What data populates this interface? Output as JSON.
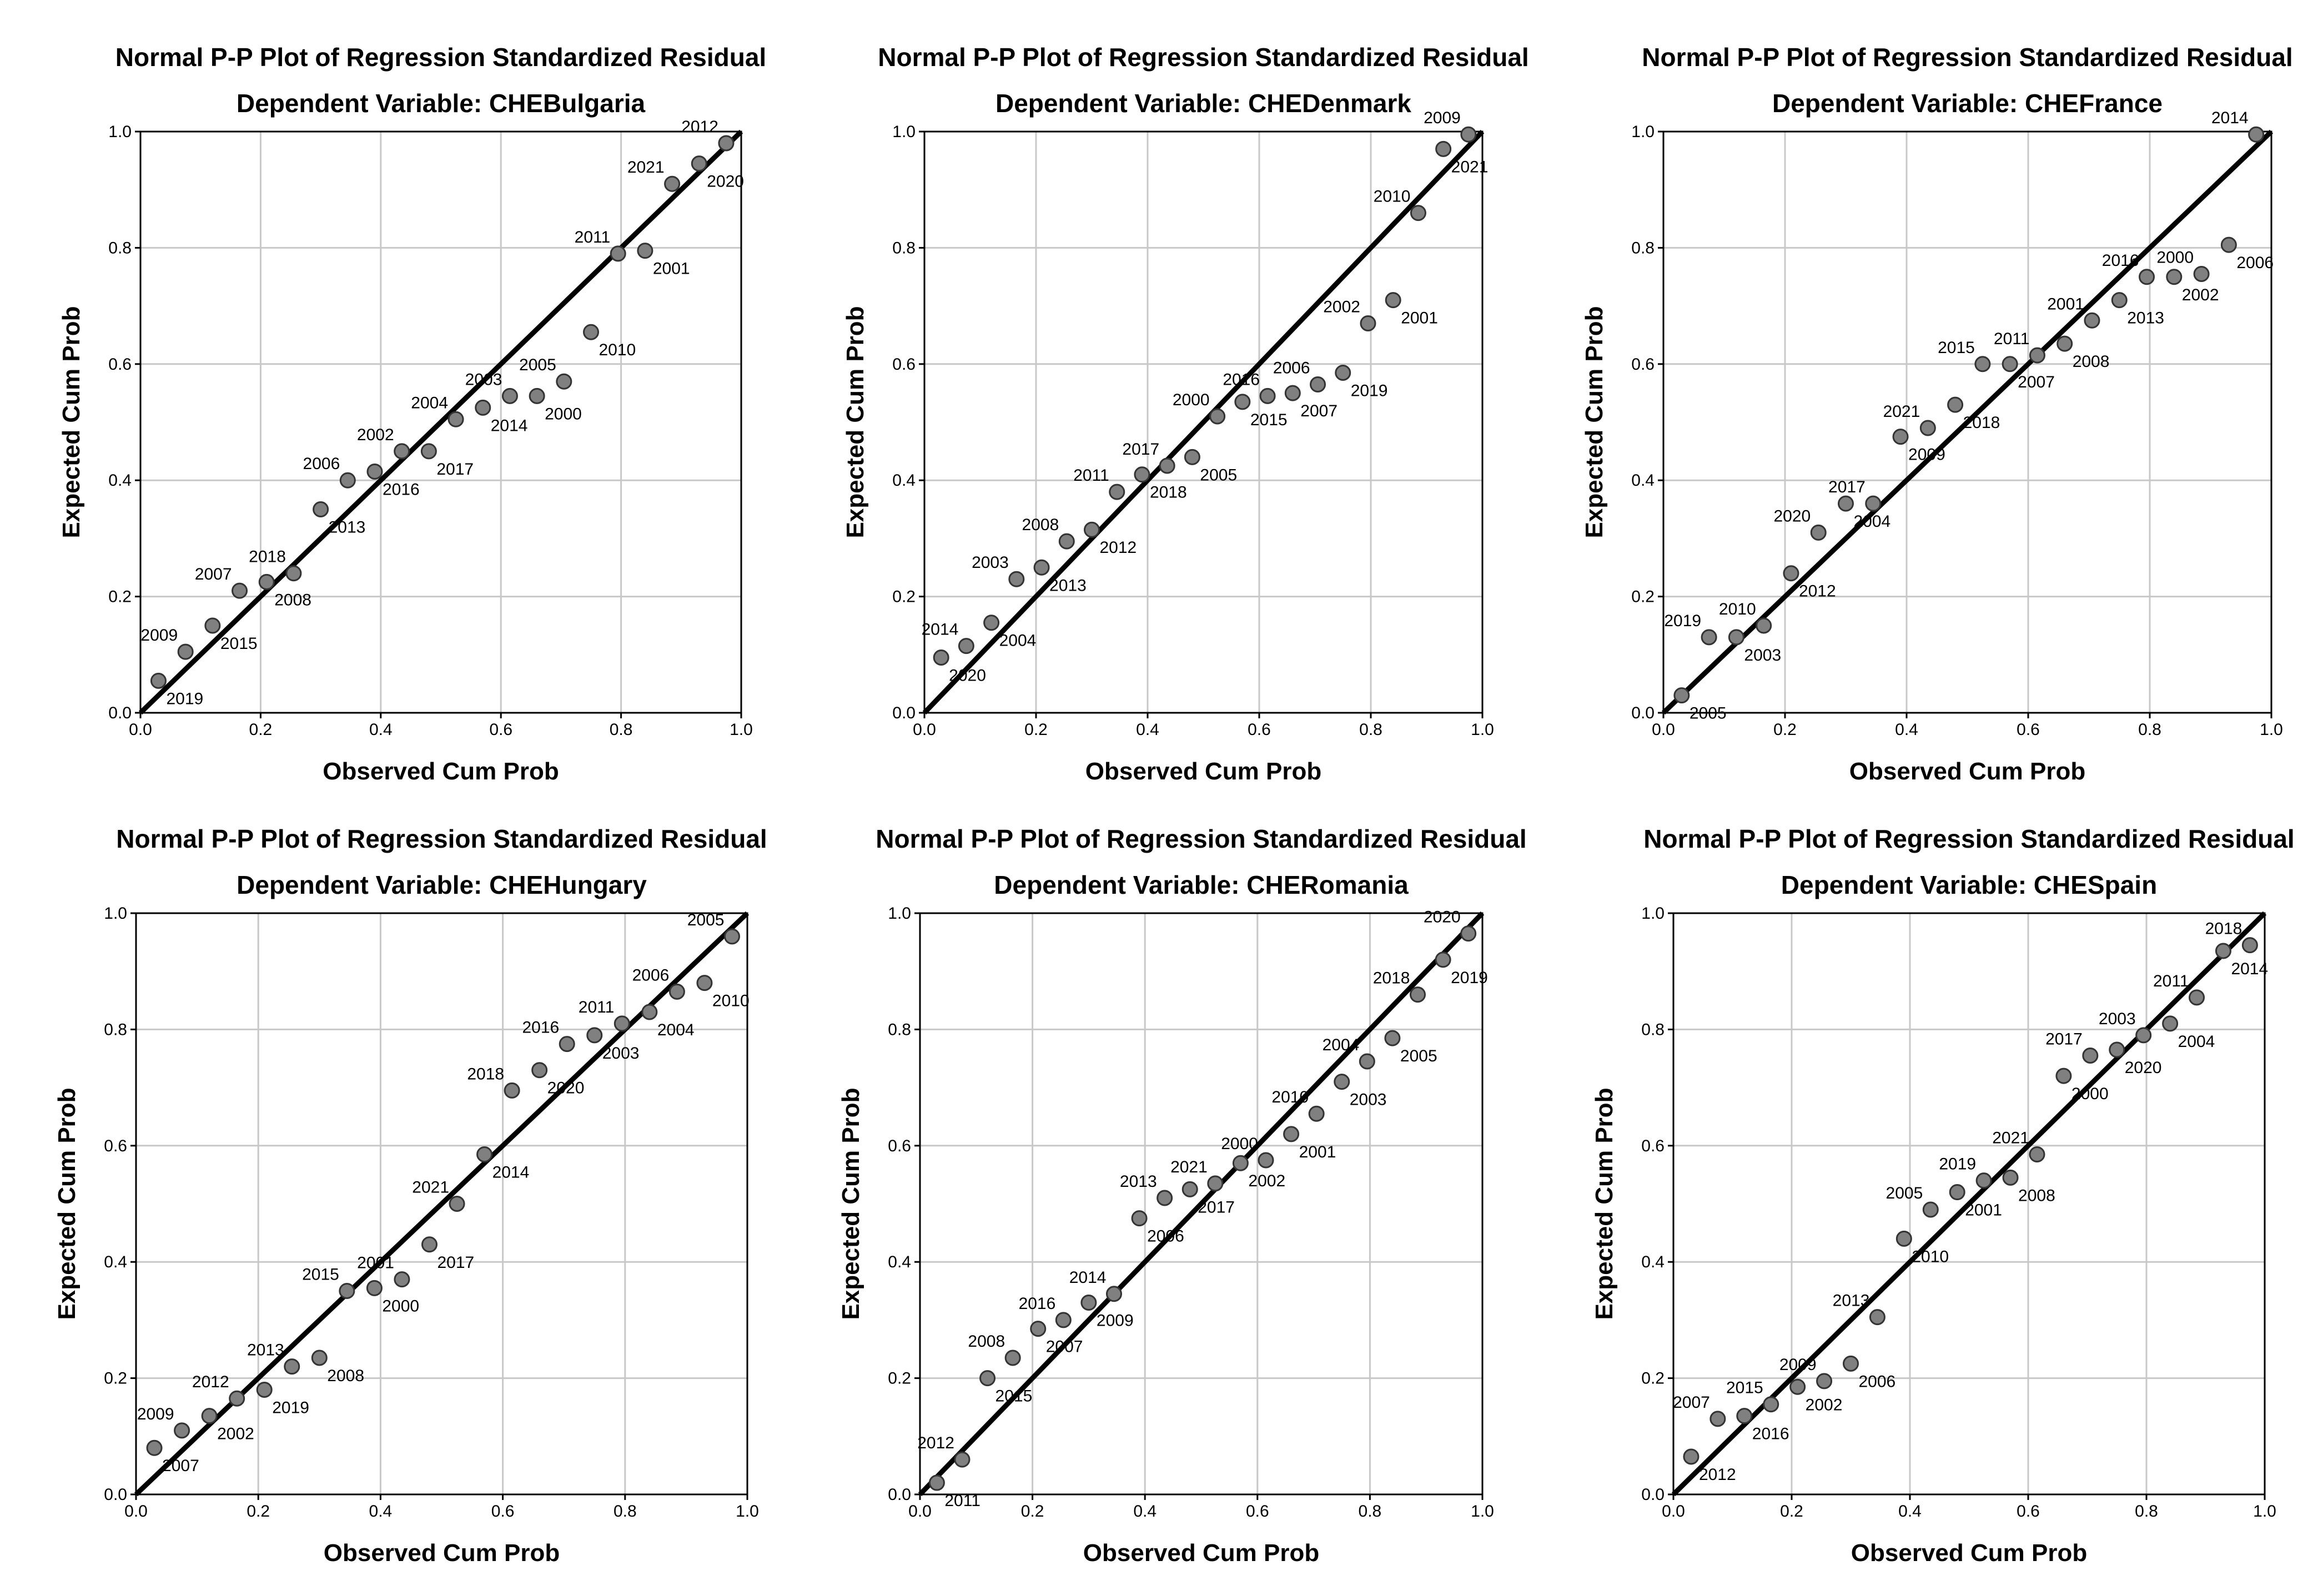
{
  "chart_data": [
    {
      "type": "scatter",
      "title": "Normal P-P Plot of Regression Standardized Residual",
      "subtitle": "Dependent Variable: CHEBulgaria",
      "xlabel": "Observed Cum Prob",
      "ylabel": "Expected Cum Prob",
      "xlim": [
        0,
        1
      ],
      "ylim": [
        0,
        1
      ],
      "ticks": [
        "0.0",
        "0.2",
        "0.4",
        "0.6",
        "0.8",
        "1.0"
      ],
      "grid": true,
      "reference_line": [
        [
          0,
          0
        ],
        [
          1,
          1
        ]
      ],
      "points": [
        {
          "label": "2019",
          "x": 0.03,
          "y": 0.055
        },
        {
          "label": "2009",
          "x": 0.075,
          "y": 0.105
        },
        {
          "label": "2015",
          "x": 0.12,
          "y": 0.15
        },
        {
          "label": "2007",
          "x": 0.165,
          "y": 0.21
        },
        {
          "label": "2008",
          "x": 0.21,
          "y": 0.225
        },
        {
          "label": "2018",
          "x": 0.255,
          "y": 0.24
        },
        {
          "label": "2013",
          "x": 0.3,
          "y": 0.35
        },
        {
          "label": "2006",
          "x": 0.345,
          "y": 0.4
        },
        {
          "label": "2016",
          "x": 0.39,
          "y": 0.415
        },
        {
          "label": "2002",
          "x": 0.435,
          "y": 0.45
        },
        {
          "label": "2017",
          "x": 0.48,
          "y": 0.45
        },
        {
          "label": "2004",
          "x": 0.525,
          "y": 0.505
        },
        {
          "label": "2014",
          "x": 0.57,
          "y": 0.525
        },
        {
          "label": "2003",
          "x": 0.615,
          "y": 0.545
        },
        {
          "label": "2000",
          "x": 0.66,
          "y": 0.545
        },
        {
          "label": "2005",
          "x": 0.705,
          "y": 0.57
        },
        {
          "label": "2010",
          "x": 0.75,
          "y": 0.655
        },
        {
          "label": "2011",
          "x": 0.795,
          "y": 0.79
        },
        {
          "label": "2001",
          "x": 0.84,
          "y": 0.795
        },
        {
          "label": "2021",
          "x": 0.885,
          "y": 0.91
        },
        {
          "label": "2020",
          "x": 0.93,
          "y": 0.945
        },
        {
          "label": "2012",
          "x": 0.975,
          "y": 0.98
        }
      ]
    },
    {
      "type": "scatter",
      "title": "Normal P-P Plot of Regression Standardized Residual",
      "subtitle": "Dependent Variable: CHEDenmark",
      "xlabel": "Observed Cum Prob",
      "ylabel": "Expected Cum Prob",
      "xlim": [
        0,
        1
      ],
      "ylim": [
        0,
        1
      ],
      "ticks": [
        "0.0",
        "0.2",
        "0.4",
        "0.6",
        "0.8",
        "1.0"
      ],
      "grid": true,
      "reference_line": [
        [
          0,
          0
        ],
        [
          1,
          1
        ]
      ],
      "points": [
        {
          "label": "2020",
          "x": 0.03,
          "y": 0.095
        },
        {
          "label": "2014",
          "x": 0.075,
          "y": 0.115
        },
        {
          "label": "2004",
          "x": 0.12,
          "y": 0.155
        },
        {
          "label": "2003",
          "x": 0.165,
          "y": 0.23
        },
        {
          "label": "2013",
          "x": 0.21,
          "y": 0.25
        },
        {
          "label": "2008",
          "x": 0.255,
          "y": 0.295
        },
        {
          "label": "2012",
          "x": 0.3,
          "y": 0.315
        },
        {
          "label": "2011",
          "x": 0.345,
          "y": 0.38
        },
        {
          "label": "2018",
          "x": 0.39,
          "y": 0.41
        },
        {
          "label": "2017",
          "x": 0.435,
          "y": 0.425
        },
        {
          "label": "2005",
          "x": 0.48,
          "y": 0.44
        },
        {
          "label": "2000",
          "x": 0.525,
          "y": 0.51
        },
        {
          "label": "2015",
          "x": 0.57,
          "y": 0.535
        },
        {
          "label": "2016",
          "x": 0.615,
          "y": 0.545
        },
        {
          "label": "2007",
          "x": 0.66,
          "y": 0.55
        },
        {
          "label": "2006",
          "x": 0.705,
          "y": 0.565
        },
        {
          "label": "2019",
          "x": 0.75,
          "y": 0.585
        },
        {
          "label": "2002",
          "x": 0.795,
          "y": 0.67
        },
        {
          "label": "2001",
          "x": 0.84,
          "y": 0.71
        },
        {
          "label": "2010",
          "x": 0.885,
          "y": 0.86
        },
        {
          "label": "2021",
          "x": 0.93,
          "y": 0.97
        },
        {
          "label": "2009",
          "x": 0.975,
          "y": 0.995
        }
      ]
    },
    {
      "type": "scatter",
      "title": "Normal P-P Plot of Regression Standardized Residual",
      "subtitle": "Dependent Variable: CHEFrance",
      "xlabel": "Observed Cum Prob",
      "ylabel": "Expected Cum Prob",
      "xlim": [
        0,
        1
      ],
      "ylim": [
        0,
        1
      ],
      "ticks": [
        "0.0",
        "0.2",
        "0.4",
        "0.6",
        "0.8",
        "1.0"
      ],
      "grid": true,
      "reference_line": [
        [
          0,
          0
        ],
        [
          1,
          1
        ]
      ],
      "points": [
        {
          "label": "2005",
          "x": 0.03,
          "y": 0.03
        },
        {
          "label": "2019",
          "x": 0.075,
          "y": 0.13
        },
        {
          "label": "2003",
          "x": 0.12,
          "y": 0.13
        },
        {
          "label": "2010",
          "x": 0.165,
          "y": 0.15
        },
        {
          "label": "2012",
          "x": 0.21,
          "y": 0.24
        },
        {
          "label": "2020",
          "x": 0.255,
          "y": 0.31
        },
        {
          "label": "2004",
          "x": 0.3,
          "y": 0.36
        },
        {
          "label": "2017",
          "x": 0.345,
          "y": 0.36
        },
        {
          "label": "2009",
          "x": 0.39,
          "y": 0.475
        },
        {
          "label": "2021",
          "x": 0.435,
          "y": 0.49
        },
        {
          "label": "2018",
          "x": 0.48,
          "y": 0.53
        },
        {
          "label": "2015",
          "x": 0.525,
          "y": 0.6
        },
        {
          "label": "2007",
          "x": 0.57,
          "y": 0.6
        },
        {
          "label": "2011",
          "x": 0.615,
          "y": 0.615
        },
        {
          "label": "2008",
          "x": 0.66,
          "y": 0.635
        },
        {
          "label": "2001",
          "x": 0.705,
          "y": 0.675
        },
        {
          "label": "2013",
          "x": 0.75,
          "y": 0.71
        },
        {
          "label": "2016",
          "x": 0.795,
          "y": 0.75
        },
        {
          "label": "2002",
          "x": 0.84,
          "y": 0.75
        },
        {
          "label": "2000",
          "x": 0.885,
          "y": 0.755
        },
        {
          "label": "2006",
          "x": 0.93,
          "y": 0.805
        },
        {
          "label": "2014",
          "x": 0.975,
          "y": 0.995
        }
      ]
    },
    {
      "type": "scatter",
      "title": "Normal P-P Plot of Regression Standardized Residual",
      "subtitle": "Dependent Variable: CHEHungary",
      "xlabel": "Observed Cum Prob",
      "ylabel": "Expected Cum Prob",
      "xlim": [
        0,
        1
      ],
      "ylim": [
        0,
        1
      ],
      "ticks": [
        "0.0",
        "0.2",
        "0.4",
        "0.6",
        "0.8",
        "1.0"
      ],
      "grid": true,
      "reference_line": [
        [
          0,
          0
        ],
        [
          1,
          1
        ]
      ],
      "points": [
        {
          "label": "2007",
          "x": 0.03,
          "y": 0.08
        },
        {
          "label": "2009",
          "x": 0.075,
          "y": 0.11
        },
        {
          "label": "2002",
          "x": 0.12,
          "y": 0.135
        },
        {
          "label": "2012",
          "x": 0.165,
          "y": 0.165
        },
        {
          "label": "2019",
          "x": 0.21,
          "y": 0.18
        },
        {
          "label": "2013",
          "x": 0.255,
          "y": 0.22
        },
        {
          "label": "2008",
          "x": 0.3,
          "y": 0.235
        },
        {
          "label": "2015",
          "x": 0.345,
          "y": 0.35
        },
        {
          "label": "2000",
          "x": 0.39,
          "y": 0.355
        },
        {
          "label": "2001",
          "x": 0.435,
          "y": 0.37
        },
        {
          "label": "2017",
          "x": 0.48,
          "y": 0.43
        },
        {
          "label": "2021",
          "x": 0.525,
          "y": 0.5
        },
        {
          "label": "2014",
          "x": 0.57,
          "y": 0.585
        },
        {
          "label": "2018",
          "x": 0.615,
          "y": 0.695
        },
        {
          "label": "2020",
          "x": 0.66,
          "y": 0.73
        },
        {
          "label": "2016",
          "x": 0.705,
          "y": 0.775
        },
        {
          "label": "2003",
          "x": 0.75,
          "y": 0.79
        },
        {
          "label": "2011",
          "x": 0.795,
          "y": 0.81
        },
        {
          "label": "2004",
          "x": 0.84,
          "y": 0.83
        },
        {
          "label": "2006",
          "x": 0.885,
          "y": 0.865
        },
        {
          "label": "2010",
          "x": 0.93,
          "y": 0.88
        },
        {
          "label": "2005",
          "x": 0.975,
          "y": 0.96
        }
      ]
    },
    {
      "type": "scatter",
      "title": "Normal P-P Plot of Regression Standardized Residual",
      "subtitle": "Dependent Variable: CHERomania",
      "xlabel": "Observed Cum Prob",
      "ylabel": "Expected Cum Prob",
      "xlim": [
        0,
        1
      ],
      "ylim": [
        0,
        1
      ],
      "ticks": [
        "0.0",
        "0.2",
        "0.4",
        "0.6",
        "0.8",
        "1.0"
      ],
      "grid": true,
      "reference_line": [
        [
          0,
          0
        ],
        [
          1,
          1
        ]
      ],
      "points": [
        {
          "label": "2011",
          "x": 0.03,
          "y": 0.02
        },
        {
          "label": "2012",
          "x": 0.075,
          "y": 0.06
        },
        {
          "label": "2015",
          "x": 0.12,
          "y": 0.2
        },
        {
          "label": "2008",
          "x": 0.165,
          "y": 0.235
        },
        {
          "label": "2007",
          "x": 0.21,
          "y": 0.285
        },
        {
          "label": "2016",
          "x": 0.255,
          "y": 0.3
        },
        {
          "label": "2009",
          "x": 0.3,
          "y": 0.33
        },
        {
          "label": "2014",
          "x": 0.345,
          "y": 0.345
        },
        {
          "label": "2006",
          "x": 0.39,
          "y": 0.475
        },
        {
          "label": "2013",
          "x": 0.435,
          "y": 0.51
        },
        {
          "label": "2017",
          "x": 0.48,
          "y": 0.525
        },
        {
          "label": "2021",
          "x": 0.525,
          "y": 0.535
        },
        {
          "label": "2002",
          "x": 0.57,
          "y": 0.57
        },
        {
          "label": "2000",
          "x": 0.615,
          "y": 0.575
        },
        {
          "label": "2001",
          "x": 0.66,
          "y": 0.62
        },
        {
          "label": "2010",
          "x": 0.705,
          "y": 0.655
        },
        {
          "label": "2003",
          "x": 0.75,
          "y": 0.71
        },
        {
          "label": "2004",
          "x": 0.795,
          "y": 0.745
        },
        {
          "label": "2005",
          "x": 0.84,
          "y": 0.785
        },
        {
          "label": "2018",
          "x": 0.885,
          "y": 0.86
        },
        {
          "label": "2019",
          "x": 0.93,
          "y": 0.92
        },
        {
          "label": "2020",
          "x": 0.975,
          "y": 0.965
        }
      ]
    },
    {
      "type": "scatter",
      "title": "Normal P-P Plot of Regression Standardized Residual",
      "subtitle": "Dependent Variable: CHESpain",
      "xlabel": "Observed Cum Prob",
      "ylabel": "Expected Cum Prob",
      "xlim": [
        0,
        1
      ],
      "ylim": [
        0,
        1
      ],
      "ticks": [
        "0.0",
        "0.2",
        "0.4",
        "0.6",
        "0.8",
        "1.0"
      ],
      "grid": true,
      "reference_line": [
        [
          0,
          0
        ],
        [
          1,
          1
        ]
      ],
      "points": [
        {
          "label": "2012",
          "x": 0.03,
          "y": 0.065
        },
        {
          "label": "2007",
          "x": 0.075,
          "y": 0.13
        },
        {
          "label": "2016",
          "x": 0.12,
          "y": 0.135
        },
        {
          "label": "2015",
          "x": 0.165,
          "y": 0.155
        },
        {
          "label": "2002",
          "x": 0.21,
          "y": 0.185
        },
        {
          "label": "2009",
          "x": 0.255,
          "y": 0.195
        },
        {
          "label": "2006",
          "x": 0.3,
          "y": 0.225
        },
        {
          "label": "2013",
          "x": 0.345,
          "y": 0.305
        },
        {
          "label": "2010",
          "x": 0.39,
          "y": 0.44
        },
        {
          "label": "2005",
          "x": 0.435,
          "y": 0.49
        },
        {
          "label": "2001",
          "x": 0.48,
          "y": 0.52
        },
        {
          "label": "2019",
          "x": 0.525,
          "y": 0.54
        },
        {
          "label": "2008",
          "x": 0.57,
          "y": 0.545
        },
        {
          "label": "2021",
          "x": 0.615,
          "y": 0.585
        },
        {
          "label": "2000",
          "x": 0.66,
          "y": 0.72
        },
        {
          "label": "2017",
          "x": 0.705,
          "y": 0.755
        },
        {
          "label": "2020",
          "x": 0.75,
          "y": 0.765
        },
        {
          "label": "2003",
          "x": 0.795,
          "y": 0.79
        },
        {
          "label": "2004",
          "x": 0.84,
          "y": 0.81
        },
        {
          "label": "2011",
          "x": 0.885,
          "y": 0.855
        },
        {
          "label": "2014",
          "x": 0.93,
          "y": 0.935
        },
        {
          "label": "2018",
          "x": 0.975,
          "y": 0.945
        }
      ]
    }
  ]
}
